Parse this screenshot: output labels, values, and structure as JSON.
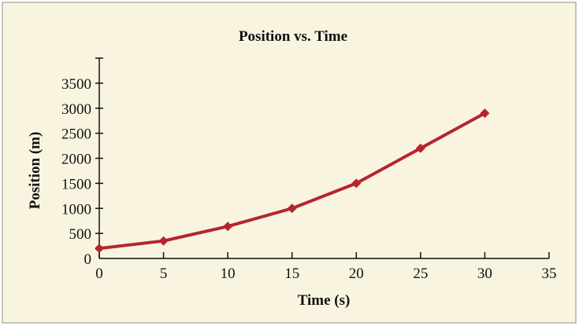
{
  "chart_data": {
    "type": "line",
    "title": "Position vs. Time",
    "xlabel": "Time (s)",
    "ylabel": "Position (m)",
    "xlim": [
      0,
      35
    ],
    "ylim": [
      0,
      4000
    ],
    "xticks": [
      0,
      5,
      10,
      15,
      20,
      25,
      30,
      35
    ],
    "yticks": [
      0,
      500,
      1000,
      1500,
      2000,
      2500,
      3000,
      3500
    ],
    "x": [
      0,
      5,
      10,
      15,
      20,
      25,
      30
    ],
    "series": [
      {
        "values": [
          200,
          350,
          640,
          1000,
          1500,
          2200,
          2900
        ],
        "color": "#b5252e",
        "marker": "diamond"
      }
    ],
    "grid": false,
    "background": "#f8f4e0",
    "border_color": "#b8b2a0"
  }
}
